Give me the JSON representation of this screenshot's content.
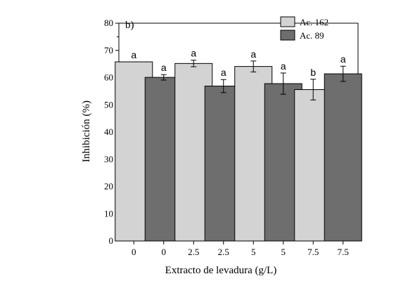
{
  "chart_data": {
    "type": "bar",
    "panel_label": "b)",
    "xlabel": "Extracto de levadura (g/L)",
    "ylabel": "Inhibición (%)",
    "ylim": [
      0,
      80
    ],
    "yticks": [
      0,
      10,
      20,
      30,
      40,
      50,
      60,
      70,
      80
    ],
    "grid": false,
    "legend_position": "top-right",
    "legend": [
      {
        "name": "Ac. 162",
        "color": "#d3d3d3"
      },
      {
        "name": "Ac. 89",
        "color": "#6e6e6e"
      }
    ],
    "categories": [
      "0",
      "0",
      "2.5",
      "2.5",
      "5",
      "5",
      "7.5",
      "7.5"
    ],
    "bars": [
      {
        "label": "0",
        "series": "Ac. 162",
        "value": 65.8,
        "error": 0,
        "sig": "a",
        "color": "#d3d3d3"
      },
      {
        "label": "0",
        "series": "Ac. 89",
        "value": 60.1,
        "error": 1.0,
        "sig": "a",
        "color": "#6e6e6e"
      },
      {
        "label": "2.5",
        "series": "Ac. 162",
        "value": 65.2,
        "error": 1.2,
        "sig": "a",
        "color": "#d3d3d3"
      },
      {
        "label": "2.5",
        "series": "Ac. 89",
        "value": 56.9,
        "error": 2.4,
        "sig": "a",
        "color": "#6e6e6e"
      },
      {
        "label": "5",
        "series": "Ac. 162",
        "value": 64.1,
        "error": 2.0,
        "sig": "a",
        "color": "#d3d3d3"
      },
      {
        "label": "5",
        "series": "Ac. 89",
        "value": 57.8,
        "error": 3.9,
        "sig": "a",
        "color": "#6e6e6e"
      },
      {
        "label": "7.5",
        "series": "Ac. 162",
        "value": 55.6,
        "error": 3.8,
        "sig": "b",
        "color": "#d3d3d3"
      },
      {
        "label": "7.5",
        "series": "Ac. 89",
        "value": 61.4,
        "error": 2.8,
        "sig": "a",
        "color": "#6e6e6e"
      }
    ]
  }
}
